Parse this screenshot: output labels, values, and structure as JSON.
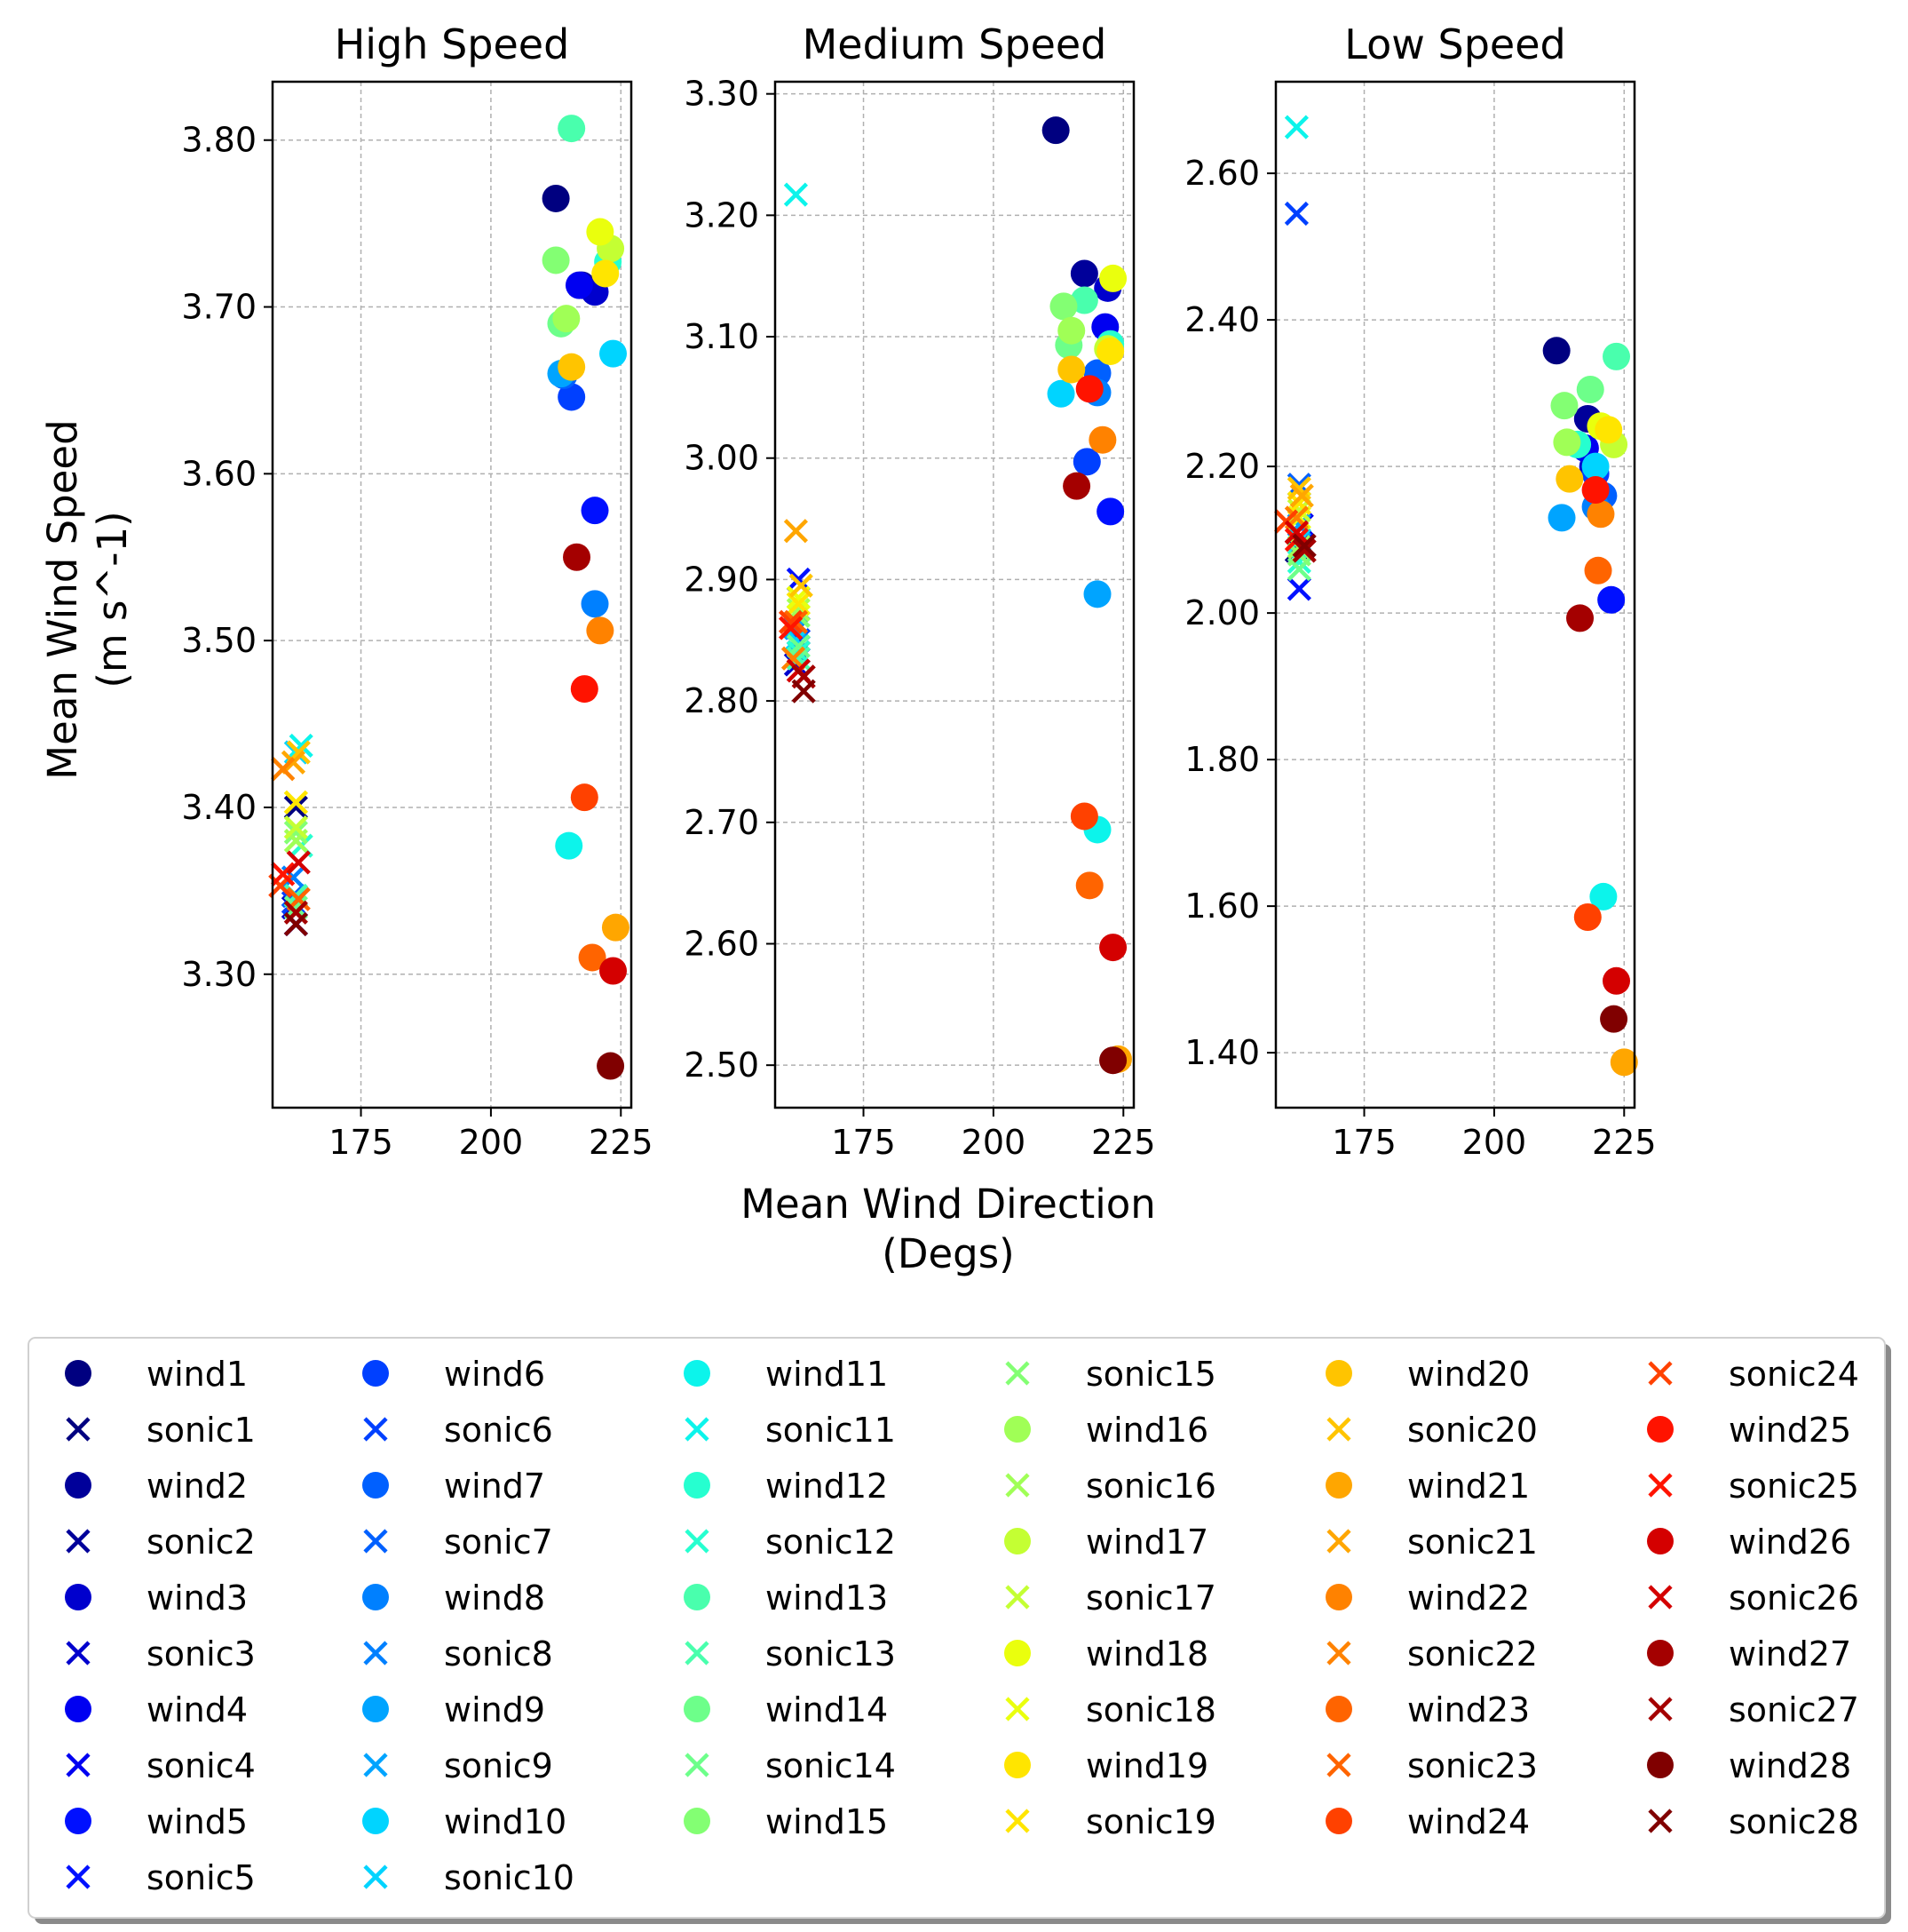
{
  "figure": {
    "xlabel": "Mean Wind Direction\n(Degs)",
    "ylabel": "Mean Wind Speed\n(m s^-1)"
  },
  "chart_data": [
    {
      "type": "scatter",
      "title": "High Speed",
      "xlim": [
        158,
        227
      ],
      "ylim": [
        3.22,
        3.835
      ],
      "xticks": [
        175,
        200,
        225
      ],
      "yticks": [
        3.3,
        3.4,
        3.5,
        3.6,
        3.7,
        3.8
      ],
      "ytick_labels": [
        "3.30",
        "3.40",
        "3.50",
        "3.60",
        "3.70",
        "3.80"
      ],
      "grid": true,
      "wind_direction": [
        212.5,
        217.5,
        220,
        217,
        220,
        215.5,
        214,
        220,
        213.5,
        223.5,
        215,
        222.5,
        215.5,
        213.5,
        212.5,
        214.5,
        223,
        221,
        222,
        215.5,
        224,
        221,
        219.5,
        218,
        218,
        223.5,
        216.5,
        223
      ],
      "wind_speed": [
        3.765,
        3.713,
        3.709,
        3.713,
        3.578,
        3.646,
        3.659,
        3.522,
        3.66,
        3.672,
        3.377,
        3.727,
        3.807,
        3.69,
        3.728,
        3.693,
        3.735,
        3.745,
        3.72,
        3.664,
        3.328,
        3.506,
        3.31,
        3.406,
        3.471,
        3.302,
        3.55,
        3.245
      ],
      "sonic_direction": [
        162.5,
        162.5,
        162,
        162.5,
        162,
        162,
        162,
        162,
        162.5,
        162.5,
        163.5,
        163.5,
        162.5,
        162.5,
        162.5,
        162.5,
        162.5,
        162.5,
        162.5,
        163,
        162,
        160,
        163,
        159.5,
        160,
        163,
        162.5,
        162.5
      ],
      "sonic_speed": [
        3.4,
        3.33,
        3.34,
        3.33,
        3.347,
        3.343,
        3.347,
        3.358,
        3.347,
        3.433,
        3.437,
        3.377,
        3.347,
        3.34,
        3.385,
        3.38,
        3.388,
        3.403,
        3.403,
        3.433,
        3.427,
        3.423,
        3.345,
        3.353,
        3.36,
        3.367,
        3.337,
        3.33
      ]
    },
    {
      "type": "scatter",
      "title": "Medium Speed",
      "xlim": [
        158,
        227
      ],
      "ylim": [
        2.465,
        3.31
      ],
      "xticks": [
        175,
        200,
        225
      ],
      "yticks": [
        2.5,
        2.6,
        2.7,
        2.8,
        2.9,
        3.0,
        3.1,
        3.2,
        3.3
      ],
      "ytick_labels": [
        "2.50",
        "2.60",
        "2.70",
        "2.80",
        "2.90",
        "3.00",
        "3.10",
        "3.20",
        "3.30"
      ],
      "grid": true,
      "wind_direction": [
        212,
        217.5,
        222,
        221.5,
        222.5,
        218,
        220,
        220,
        220,
        213,
        220,
        222.5,
        217.5,
        214.5,
        213.5,
        215,
        222,
        223,
        222.5,
        215,
        224,
        221,
        218.5,
        217.5,
        218.5,
        223,
        216,
        223
      ],
      "wind_speed": [
        3.27,
        3.152,
        3.14,
        3.108,
        2.956,
        2.997,
        3.07,
        3.054,
        2.888,
        3.053,
        2.694,
        3.094,
        3.13,
        3.093,
        3.125,
        3.105,
        3.09,
        3.148,
        3.088,
        3.073,
        2.505,
        3.015,
        2.648,
        2.705,
        3.057,
        2.597,
        2.977,
        2.504
      ],
      "sonic_direction": [
        162,
        162.5,
        162,
        162.5,
        162.5,
        162.5,
        162.5,
        162.5,
        162,
        162,
        162,
        162.5,
        162.5,
        162.5,
        162.5,
        162.5,
        162.5,
        162.5,
        162.5,
        163,
        162,
        161.5,
        162,
        161,
        161,
        162.5,
        163.5,
        163.5
      ],
      "sonic_speed": [
        2.86,
        2.84,
        2.83,
        2.85,
        2.9,
        2.85,
        2.86,
        2.86,
        2.86,
        2.85,
        3.217,
        2.84,
        2.835,
        2.845,
        2.87,
        2.875,
        2.88,
        2.885,
        2.88,
        2.895,
        2.94,
        2.835,
        2.865,
        2.865,
        2.86,
        2.825,
        2.82,
        2.808
      ]
    },
    {
      "type": "scatter",
      "title": "Low Speed",
      "xlim": [
        158,
        227
      ],
      "ylim": [
        1.325,
        2.725
      ],
      "xticks": [
        175,
        200,
        225
      ],
      "yticks": [
        1.4,
        1.6,
        1.8,
        2.0,
        2.2,
        2.4,
        2.6
      ],
      "ytick_labels": [
        "1.40",
        "1.60",
        "1.80",
        "2.00",
        "2.20",
        "2.40",
        "2.60"
      ],
      "grid": true,
      "wind_direction": [
        212,
        218,
        219,
        217.5,
        222.5,
        219.5,
        221,
        219.5,
        213,
        219.5,
        221,
        216,
        223.5,
        218.5,
        213.5,
        214,
        223,
        220.5,
        222,
        214.5,
        225,
        220.5,
        220,
        218,
        219.5,
        223.5,
        216.5,
        223
      ],
      "wind_speed": [
        2.358,
        2.265,
        2.2,
        2.225,
        2.018,
        2.19,
        2.16,
        2.145,
        2.13,
        2.2,
        1.613,
        2.23,
        2.35,
        2.305,
        2.283,
        2.233,
        2.23,
        2.255,
        2.25,
        2.183,
        1.387,
        2.135,
        2.058,
        1.585,
        2.168,
        1.498,
        1.993,
        1.446
      ],
      "sonic_direction": [
        162,
        163,
        162.5,
        163,
        162.5,
        162,
        162.5,
        162.5,
        162.5,
        162.5,
        162,
        162.5,
        162.5,
        162.5,
        162.5,
        162.5,
        162.5,
        162.5,
        162.5,
        162.5,
        163,
        162,
        162,
        160,
        162,
        162,
        163.5,
        163.5
      ],
      "sonic_speed": [
        2.085,
        2.095,
        2.12,
        2.12,
        2.033,
        2.545,
        2.175,
        2.1,
        2.12,
        2.1,
        2.663,
        2.07,
        2.09,
        2.06,
        2.08,
        2.09,
        2.14,
        2.13,
        2.15,
        2.17,
        2.16,
        2.13,
        2.11,
        2.125,
        2.1,
        2.11,
        2.085,
        2.092
      ]
    }
  ],
  "legend": {
    "placement": "lower-center",
    "columns": 6,
    "entries": [
      {
        "label": "wind1",
        "marker": "circle",
        "color": "#000080"
      },
      {
        "label": "sonic1",
        "marker": "x",
        "color": "#000080"
      },
      {
        "label": "wind2",
        "marker": "circle",
        "color": "#00009a"
      },
      {
        "label": "sonic2",
        "marker": "x",
        "color": "#00009a"
      },
      {
        "label": "wind3",
        "marker": "circle",
        "color": "#0000cd"
      },
      {
        "label": "sonic3",
        "marker": "x",
        "color": "#0000cd"
      },
      {
        "label": "wind4",
        "marker": "circle",
        "color": "#0000f1"
      },
      {
        "label": "sonic4",
        "marker": "x",
        "color": "#0000f1"
      },
      {
        "label": "wind5",
        "marker": "circle",
        "color": "#0010ff"
      },
      {
        "label": "sonic5",
        "marker": "x",
        "color": "#0010ff"
      },
      {
        "label": "wind6",
        "marker": "circle",
        "color": "#0040ff"
      },
      {
        "label": "sonic6",
        "marker": "x",
        "color": "#0040ff"
      },
      {
        "label": "wind7",
        "marker": "circle",
        "color": "#0060ff"
      },
      {
        "label": "sonic7",
        "marker": "x",
        "color": "#0060ff"
      },
      {
        "label": "wind8",
        "marker": "circle",
        "color": "#0080ff"
      },
      {
        "label": "sonic8",
        "marker": "x",
        "color": "#0080ff"
      },
      {
        "label": "wind9",
        "marker": "circle",
        "color": "#00a4ff"
      },
      {
        "label": "sonic9",
        "marker": "x",
        "color": "#00a4ff"
      },
      {
        "label": "wind10",
        "marker": "circle",
        "color": "#00d4ff"
      },
      {
        "label": "sonic10",
        "marker": "x",
        "color": "#00d4ff"
      },
      {
        "label": "wind11",
        "marker": "circle",
        "color": "#0cf4eb"
      },
      {
        "label": "sonic11",
        "marker": "x",
        "color": "#0cf4eb"
      },
      {
        "label": "wind12",
        "marker": "circle",
        "color": "#26ffd0"
      },
      {
        "label": "sonic12",
        "marker": "x",
        "color": "#26ffd0"
      },
      {
        "label": "wind13",
        "marker": "circle",
        "color": "#49ffad"
      },
      {
        "label": "sonic13",
        "marker": "x",
        "color": "#49ffad"
      },
      {
        "label": "wind14",
        "marker": "circle",
        "color": "#6dff8a"
      },
      {
        "label": "sonic14",
        "marker": "x",
        "color": "#6dff8a"
      },
      {
        "label": "wind15",
        "marker": "circle",
        "color": "#83ff73"
      },
      {
        "label": "sonic15",
        "marker": "x",
        "color": "#83ff73"
      },
      {
        "label": "wind16",
        "marker": "circle",
        "color": "#a0ff56"
      },
      {
        "label": "sonic16",
        "marker": "x",
        "color": "#a0ff56"
      },
      {
        "label": "wind17",
        "marker": "circle",
        "color": "#c4ff33"
      },
      {
        "label": "sonic17",
        "marker": "x",
        "color": "#c4ff33"
      },
      {
        "label": "wind18",
        "marker": "circle",
        "color": "#eaff0d"
      },
      {
        "label": "sonic18",
        "marker": "x",
        "color": "#eaff0d"
      },
      {
        "label": "wind19",
        "marker": "circle",
        "color": "#ffe500"
      },
      {
        "label": "sonic19",
        "marker": "x",
        "color": "#ffe500"
      },
      {
        "label": "wind20",
        "marker": "circle",
        "color": "#ffc400"
      },
      {
        "label": "sonic20",
        "marker": "x",
        "color": "#ffc400"
      },
      {
        "label": "wind21",
        "marker": "circle",
        "color": "#ffa600"
      },
      {
        "label": "sonic21",
        "marker": "x",
        "color": "#ffa600"
      },
      {
        "label": "wind22",
        "marker": "circle",
        "color": "#ff8200"
      },
      {
        "label": "sonic22",
        "marker": "x",
        "color": "#ff8200"
      },
      {
        "label": "wind23",
        "marker": "circle",
        "color": "#ff6400"
      },
      {
        "label": "sonic23",
        "marker": "x",
        "color": "#ff6400"
      },
      {
        "label": "wind24",
        "marker": "circle",
        "color": "#ff4100"
      },
      {
        "label": "sonic24",
        "marker": "x",
        "color": "#ff4100"
      },
      {
        "label": "wind25",
        "marker": "circle",
        "color": "#ff1300"
      },
      {
        "label": "sonic25",
        "marker": "x",
        "color": "#ff1300"
      },
      {
        "label": "wind26",
        "marker": "circle",
        "color": "#d40000"
      },
      {
        "label": "sonic26",
        "marker": "x",
        "color": "#d40000"
      },
      {
        "label": "wind27",
        "marker": "circle",
        "color": "#a40000"
      },
      {
        "label": "sonic27",
        "marker": "x",
        "color": "#a40000"
      },
      {
        "label": "wind28",
        "marker": "circle",
        "color": "#800000"
      },
      {
        "label": "sonic28",
        "marker": "x",
        "color": "#800000"
      }
    ]
  }
}
